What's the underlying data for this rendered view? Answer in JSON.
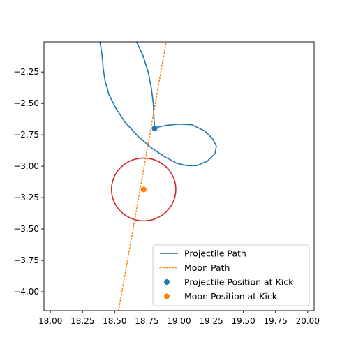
{
  "chart_data": {
    "type": "line",
    "title": "",
    "xlabel": "",
    "ylabel": "",
    "xlim": [
      17.95,
      20.05
    ],
    "ylim": [
      -4.15,
      -2.01
    ],
    "grid": false,
    "legend_position": "lower-right",
    "x_ticks": [
      "18.00",
      "18.25",
      "18.50",
      "18.75",
      "19.00",
      "19.25",
      "19.50",
      "19.75",
      "20.00"
    ],
    "y_ticks": [
      "−2.25",
      "−2.50",
      "−2.75",
      "−3.00",
      "−3.25",
      "−3.50",
      "−3.75",
      "−4.00"
    ],
    "series": [
      {
        "name": "Projectile Path",
        "style": "solid",
        "color": "#1f77b4",
        "x": [
          18.67,
          18.72,
          18.76,
          18.785,
          18.8,
          18.805,
          18.81,
          18.83,
          18.9,
          19.0,
          19.1,
          19.2,
          19.26,
          19.29,
          19.28,
          19.22,
          19.14,
          19.06,
          18.98,
          18.88,
          18.78,
          18.68,
          18.58,
          18.51,
          18.455,
          18.425,
          18.41,
          18.405,
          18.4,
          18.39,
          18.385
        ],
        "y": [
          -2.01,
          -2.12,
          -2.25,
          -2.38,
          -2.5,
          -2.62,
          -2.7,
          -2.69,
          -2.675,
          -2.665,
          -2.67,
          -2.72,
          -2.78,
          -2.84,
          -2.9,
          -2.96,
          -2.995,
          -2.995,
          -2.975,
          -2.92,
          -2.85,
          -2.76,
          -2.65,
          -2.54,
          -2.43,
          -2.32,
          -2.22,
          -2.15,
          -2.1,
          -2.04,
          -2.01
        ]
      },
      {
        "name": "Moon Path",
        "style": "dotted",
        "color": "#ff7f0e",
        "x": [
          18.53,
          18.9
        ],
        "y": [
          -4.15,
          -2.01
        ]
      }
    ],
    "markers": [
      {
        "name": "Projectile Position at Kick",
        "x": 18.81,
        "y": -2.7,
        "color": "#1f77b4"
      },
      {
        "name": "Moon Position at Kick",
        "x": 18.725,
        "y": -3.185,
        "color": "#ff7f0e"
      }
    ],
    "circle": {
      "cx": 18.725,
      "cy": -3.185,
      "r": 0.25,
      "color": "#d62728"
    }
  }
}
